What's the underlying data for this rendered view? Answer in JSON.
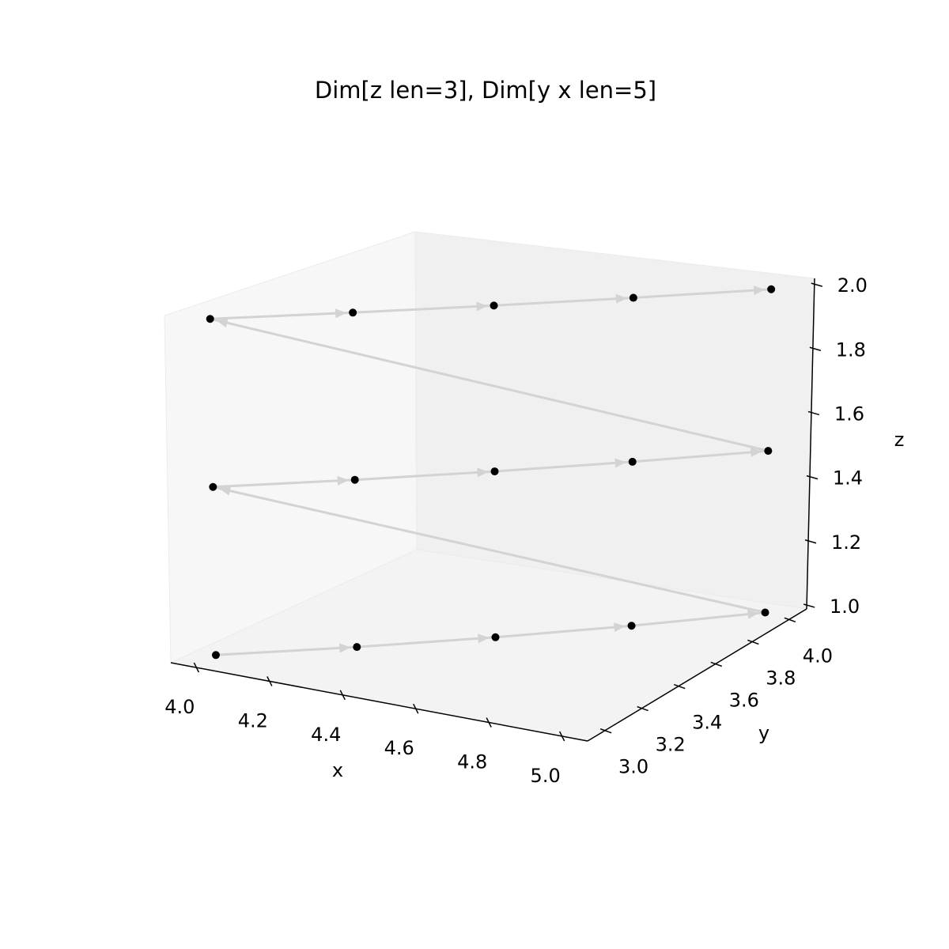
{
  "chart_data": {
    "type": "scatter3d",
    "title": "Dim[z len=3], Dim[y x len=5]",
    "x": [
      4,
      4.25,
      4.5,
      4.75,
      5,
      4,
      4.25,
      4.5,
      4.75,
      5,
      4,
      4.25,
      4.5,
      4.75,
      5
    ],
    "y": [
      3,
      3.25,
      3.5,
      3.75,
      4,
      3,
      3.25,
      3.5,
      3.75,
      4,
      3,
      3.25,
      3.5,
      3.75,
      4
    ],
    "z": [
      1,
      1,
      1,
      1,
      1,
      1.5,
      1.5,
      1.5,
      1.5,
      1.5,
      2,
      2,
      2,
      2,
      2
    ],
    "point_color": "#000000",
    "line_color": "#d3d3d3",
    "xlabel": "x",
    "ylabel": "y",
    "zlabel": "z",
    "xlim": [
      3.93,
      5.07
    ],
    "ylim": [
      2.905,
      4.095
    ],
    "zlim": [
      0.99,
      2.02
    ],
    "xticks": [
      {
        "value": 4,
        "label": "4.0"
      },
      4.2,
      4.4,
      4.6,
      4.8,
      {
        "value": 5,
        "label": "5.0"
      }
    ],
    "yticks": [
      {
        "value": 3,
        "label": "3.0"
      },
      3.2,
      3.4,
      3.6,
      3.8,
      {
        "value": 4,
        "label": "4.0"
      }
    ],
    "zticks": [
      {
        "value": 1,
        "label": "1.0"
      },
      1.2,
      1.4,
      1.6,
      1.8,
      {
        "value": 2,
        "label": "2.0"
      }
    ],
    "grid": false
  }
}
